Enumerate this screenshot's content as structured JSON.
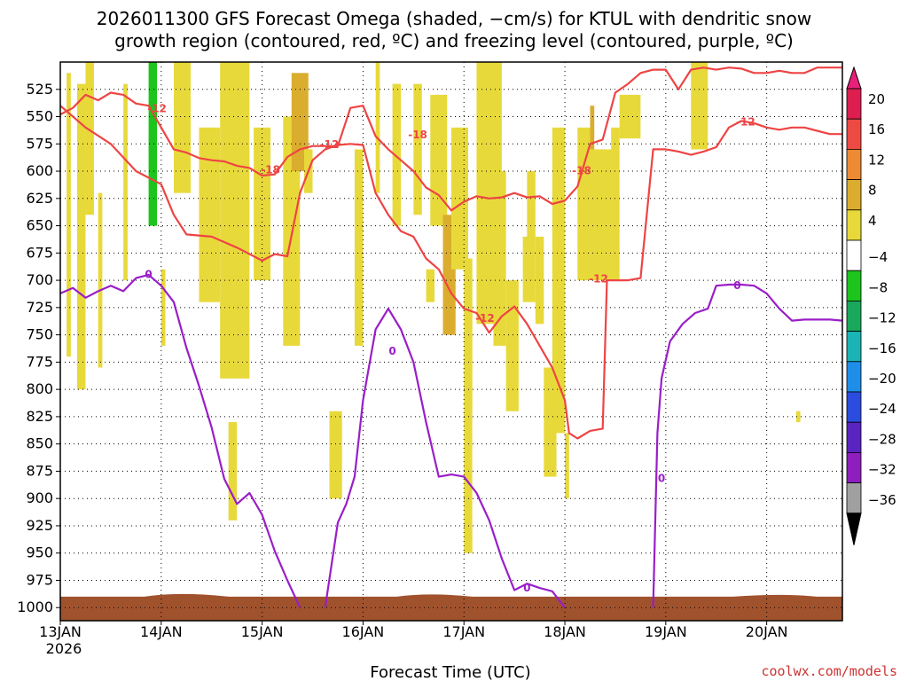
{
  "chart_data": {
    "type": "time-height cross-section",
    "title_line1": "2026011300 GFS Forecast Omega (shaded, −cm/s) for KTUL with dendritic snow",
    "title_line2": "growth region (contoured, red, ºC) and freezing level (contoured, purple, ºC)",
    "xlabel": "Forecast Time (UTC)",
    "credit": "coolwx.com/models",
    "x_start_year": "2026",
    "x_ticks": [
      {
        "label": "13JAN",
        "hour": 0
      },
      {
        "label": "14JAN",
        "hour": 24
      },
      {
        "label": "15JAN",
        "hour": 48
      },
      {
        "label": "16JAN",
        "hour": 72
      },
      {
        "label": "17JAN",
        "hour": 96
      },
      {
        "label": "18JAN",
        "hour": 120
      },
      {
        "label": "19JAN",
        "hour": 144
      },
      {
        "label": "20JAN",
        "hour": 168
      }
    ],
    "xlim_hours": [
      0,
      186
    ],
    "ylim_hpa": [
      500,
      1012
    ],
    "y_ticks": [
      "525",
      "550",
      "575",
      "600",
      "625",
      "650",
      "675",
      "700",
      "725",
      "750",
      "775",
      "800",
      "825",
      "850",
      "875",
      "900",
      "925",
      "950",
      "975",
      "1000"
    ],
    "colorbar": {
      "labels": [
        "20",
        "16",
        "12",
        "8",
        "4",
        "−4",
        "−8",
        "−12",
        "−16",
        "−20",
        "−24",
        "−28",
        "−32",
        "−36"
      ],
      "colors": [
        "#dd1e4f",
        "#ee4a44",
        "#ee8a33",
        "#dbad2e",
        "#e8d93b",
        "#ffffff",
        "#1cc41c",
        "#1aa85a",
        "#1ab4b4",
        "#1e8ee8",
        "#2c4ce0",
        "#5a24c0",
        "#8e1ebe",
        "#a0a0a0"
      ],
      "top_color": "#e8207a",
      "bottom_color": "#000000"
    },
    "contour_labels": {
      "dgz": "-12",
      "dgz_inner": "-18",
      "freezing": "0"
    },
    "dgz_upper_contour": [
      [
        0,
        548
      ],
      [
        3,
        542
      ],
      [
        6,
        530
      ],
      [
        9,
        535
      ],
      [
        12,
        528
      ],
      [
        15,
        530
      ],
      [
        18,
        538
      ],
      [
        21,
        540
      ],
      [
        24,
        560
      ],
      [
        27,
        580
      ],
      [
        30,
        583
      ],
      [
        33,
        588
      ],
      [
        36,
        590
      ],
      [
        39,
        591
      ],
      [
        42,
        595
      ],
      [
        45,
        597
      ],
      [
        48,
        604
      ],
      [
        51,
        603
      ],
      [
        54,
        587
      ],
      [
        57,
        580
      ],
      [
        60,
        577
      ],
      [
        63,
        577
      ],
      [
        66,
        577
      ],
      [
        69,
        542
      ],
      [
        72,
        540
      ],
      [
        75,
        568
      ],
      [
        78,
        580
      ],
      [
        81,
        590
      ],
      [
        84,
        600
      ],
      [
        87,
        615
      ],
      [
        90,
        622
      ],
      [
        93,
        636
      ],
      [
        96,
        628
      ],
      [
        99,
        623
      ],
      [
        102,
        625
      ],
      [
        105,
        624
      ],
      [
        108,
        620
      ],
      [
        111,
        624
      ],
      [
        114,
        623
      ],
      [
        117,
        630
      ],
      [
        120,
        627
      ],
      [
        123,
        614
      ],
      [
        126,
        575
      ],
      [
        129,
        571
      ],
      [
        132,
        528
      ],
      [
        135,
        520
      ],
      [
        138,
        510
      ],
      [
        141,
        507
      ],
      [
        144,
        507
      ],
      [
        147,
        525
      ],
      [
        150,
        507
      ],
      [
        153,
        505
      ],
      [
        156,
        507
      ],
      [
        159,
        505
      ],
      [
        162,
        506
      ],
      [
        165,
        510
      ],
      [
        168,
        510
      ],
      [
        171,
        508
      ],
      [
        174,
        510
      ],
      [
        177,
        510
      ],
      [
        180,
        505
      ],
      [
        183,
        505
      ],
      [
        186,
        505
      ]
    ],
    "dgz_lower_contour": [
      [
        0,
        540
      ],
      [
        6,
        560
      ],
      [
        12,
        575
      ],
      [
        18,
        600
      ],
      [
        24,
        612
      ],
      [
        27,
        640
      ],
      [
        30,
        658
      ],
      [
        36,
        660
      ],
      [
        42,
        670
      ],
      [
        48,
        682
      ],
      [
        51,
        676
      ],
      [
        54,
        678
      ],
      [
        57,
        620
      ],
      [
        60,
        590
      ],
      [
        63,
        580
      ],
      [
        66,
        576
      ],
      [
        69,
        575
      ],
      [
        72,
        576
      ],
      [
        75,
        620
      ],
      [
        78,
        640
      ],
      [
        81,
        655
      ],
      [
        84,
        660
      ],
      [
        87,
        680
      ],
      [
        90,
        690
      ],
      [
        93,
        712
      ],
      [
        96,
        726
      ],
      [
        99,
        730
      ],
      [
        102,
        748
      ],
      [
        105,
        733
      ],
      [
        108,
        724
      ],
      [
        111,
        740
      ],
      [
        114,
        760
      ],
      [
        117,
        780
      ],
      [
        120,
        810
      ],
      [
        121,
        840
      ],
      [
        123,
        845
      ],
      [
        126,
        838
      ],
      [
        129,
        836
      ],
      [
        130,
        700
      ],
      [
        132,
        700
      ],
      [
        135,
        700
      ],
      [
        138,
        698
      ],
      [
        141,
        580
      ],
      [
        144,
        580
      ],
      [
        147,
        582
      ],
      [
        150,
        585
      ],
      [
        153,
        582
      ],
      [
        156,
        578
      ],
      [
        159,
        560
      ],
      [
        162,
        554
      ],
      [
        165,
        556
      ],
      [
        168,
        560
      ],
      [
        171,
        562
      ],
      [
        174,
        560
      ],
      [
        177,
        560
      ],
      [
        180,
        563
      ],
      [
        183,
        566
      ],
      [
        186,
        566
      ]
    ],
    "freezing_contour": [
      [
        0,
        712
      ],
      [
        3,
        707
      ],
      [
        6,
        716
      ],
      [
        9,
        710
      ],
      [
        12,
        705
      ],
      [
        15,
        710
      ],
      [
        18,
        698
      ],
      [
        21,
        695
      ],
      [
        24,
        705
      ],
      [
        27,
        720
      ],
      [
        30,
        762
      ],
      [
        33,
        797
      ],
      [
        36,
        835
      ],
      [
        39,
        882
      ],
      [
        42,
        905
      ],
      [
        45,
        895
      ],
      [
        48,
        915
      ],
      [
        51,
        948
      ],
      [
        54,
        975
      ],
      [
        57,
        1000
      ]
    ],
    "freezing_contour_2": [
      [
        63,
        1000
      ],
      [
        66,
        922
      ],
      [
        68,
        905
      ],
      [
        70,
        880
      ],
      [
        72,
        810
      ],
      [
        75,
        745
      ],
      [
        78,
        726
      ],
      [
        81,
        745
      ],
      [
        84,
        775
      ],
      [
        87,
        830
      ],
      [
        90,
        880
      ],
      [
        93,
        878
      ],
      [
        96,
        880
      ],
      [
        99,
        895
      ],
      [
        102,
        920
      ],
      [
        105,
        955
      ],
      [
        108,
        984
      ],
      [
        111,
        978
      ],
      [
        114,
        982
      ],
      [
        117,
        985
      ],
      [
        120,
        1000
      ]
    ],
    "freezing_contour_3": [
      [
        141,
        1000
      ],
      [
        142,
        840
      ],
      [
        143,
        790
      ],
      [
        145,
        756
      ],
      [
        148,
        740
      ],
      [
        151,
        730
      ],
      [
        154,
        726
      ],
      [
        156,
        705
      ],
      [
        159,
        704
      ],
      [
        162,
        704
      ],
      [
        165,
        705
      ],
      [
        168,
        712
      ],
      [
        171,
        726
      ],
      [
        174,
        737
      ],
      [
        177,
        736
      ],
      [
        180,
        736
      ],
      [
        183,
        736
      ],
      [
        186,
        737
      ]
    ],
    "omega_bands": [
      {
        "h0": 1.5,
        "h1": 2.5,
        "p0": 510,
        "p1": 770,
        "level": "4"
      },
      {
        "h0": 4,
        "h1": 6,
        "p0": 520,
        "p1": 800,
        "level": "4"
      },
      {
        "h0": 6,
        "h1": 8,
        "p0": 500,
        "p1": 640,
        "level": "4"
      },
      {
        "h0": 9,
        "h1": 10,
        "p0": 620,
        "p1": 780,
        "level": "4"
      },
      {
        "h0": 12,
        "h1": 13,
        "p0": 500,
        "p1": 540,
        "level": "-4"
      },
      {
        "h0": 15,
        "h1": 16,
        "p0": 520,
        "p1": 700,
        "level": "4"
      },
      {
        "h0": 20,
        "h1": 23,
        "p0": 690,
        "p1": 900,
        "level": "-4"
      },
      {
        "h0": 21,
        "h1": 23,
        "p0": 500,
        "p1": 650,
        "level": "-8"
      },
      {
        "h0": 23,
        "h1": 26,
        "p0": 650,
        "p1": 940,
        "level": "-4"
      },
      {
        "h0": 24,
        "h1": 25,
        "p0": 690,
        "p1": 760,
        "level": "4"
      },
      {
        "h0": 27,
        "h1": 31,
        "p0": 500,
        "p1": 620,
        "level": "4"
      },
      {
        "h0": 33,
        "h1": 38,
        "p0": 560,
        "p1": 720,
        "level": "4"
      },
      {
        "h0": 38,
        "h1": 45,
        "p0": 500,
        "p1": 790,
        "level": "4"
      },
      {
        "h0": 40,
        "h1": 42,
        "p0": 830,
        "p1": 920,
        "level": "4"
      },
      {
        "h0": 46,
        "h1": 50,
        "p0": 560,
        "p1": 700,
        "level": "4"
      },
      {
        "h0": 53,
        "h1": 57,
        "p0": 550,
        "p1": 760,
        "level": "4"
      },
      {
        "h0": 55,
        "h1": 59,
        "p0": 510,
        "p1": 600,
        "level": "8"
      },
      {
        "h0": 58,
        "h1": 60,
        "p0": 580,
        "p1": 620,
        "level": "4"
      },
      {
        "h0": 64,
        "h1": 67,
        "p0": 820,
        "p1": 900,
        "level": "4"
      },
      {
        "h0": 70,
        "h1": 72,
        "p0": 580,
        "p1": 760,
        "level": "4"
      },
      {
        "h0": 73,
        "h1": 75,
        "p0": 580,
        "p1": 960,
        "level": "-4"
      },
      {
        "h0": 75,
        "h1": 76,
        "p0": 500,
        "p1": 620,
        "level": "4"
      },
      {
        "h0": 76,
        "h1": 78,
        "p0": 700,
        "p1": 955,
        "level": "-4"
      },
      {
        "h0": 79,
        "h1": 81,
        "p0": 520,
        "p1": 650,
        "level": "4"
      },
      {
        "h0": 81,
        "h1": 83,
        "p0": 760,
        "p1": 900,
        "level": "-4"
      },
      {
        "h0": 84,
        "h1": 86,
        "p0": 520,
        "p1": 640,
        "level": "4"
      },
      {
        "h0": 87,
        "h1": 89,
        "p0": 690,
        "p1": 720,
        "level": "4"
      },
      {
        "h0": 88,
        "h1": 92,
        "p0": 530,
        "p1": 650,
        "level": "4"
      },
      {
        "h0": 90,
        "h1": 93,
        "p0": 820,
        "p1": 950,
        "level": "-4"
      },
      {
        "h0": 91,
        "h1": 94,
        "p0": 640,
        "p1": 750,
        "level": "8"
      },
      {
        "h0": 93,
        "h1": 97,
        "p0": 560,
        "p1": 690,
        "level": "4"
      },
      {
        "h0": 96,
        "h1": 98,
        "p0": 680,
        "p1": 950,
        "level": "4"
      },
      {
        "h0": 98,
        "h1": 101,
        "p0": 820,
        "p1": 930,
        "level": "-4"
      },
      {
        "h0": 99,
        "h1": 105,
        "p0": 500,
        "p1": 740,
        "level": "4"
      },
      {
        "h0": 103,
        "h1": 106,
        "p0": 600,
        "p1": 760,
        "level": "4"
      },
      {
        "h0": 106,
        "h1": 109,
        "p0": 700,
        "p1": 820,
        "level": "4"
      },
      {
        "h0": 110,
        "h1": 113,
        "p0": 600,
        "p1": 720,
        "level": "4"
      },
      {
        "h0": 110,
        "h1": 111,
        "p0": 600,
        "p1": 660,
        "level": "-4"
      },
      {
        "h0": 113,
        "h1": 115,
        "p0": 660,
        "p1": 740,
        "level": "4"
      },
      {
        "h0": 115,
        "h1": 118,
        "p0": 780,
        "p1": 880,
        "level": "4"
      },
      {
        "h0": 117,
        "h1": 120,
        "p0": 560,
        "p1": 840,
        "level": "4"
      },
      {
        "h0": 120,
        "h1": 121,
        "p0": 840,
        "p1": 900,
        "level": "4"
      },
      {
        "h0": 123,
        "h1": 133,
        "p0": 560,
        "p1": 700,
        "level": "4"
      },
      {
        "h0": 126,
        "h1": 129,
        "p0": 540,
        "p1": 580,
        "level": "8"
      },
      {
        "h0": 127,
        "h1": 131,
        "p0": 520,
        "p1": 580,
        "level": "-4"
      },
      {
        "h0": 133,
        "h1": 138,
        "p0": 530,
        "p1": 570,
        "level": "4"
      },
      {
        "h0": 150,
        "h1": 154,
        "p0": 500,
        "p1": 580,
        "level": "4"
      },
      {
        "h0": 163,
        "h1": 166,
        "p0": 840,
        "p1": 900,
        "level": "-4"
      },
      {
        "h0": 175,
        "h1": 176,
        "p0": 820,
        "p1": 830,
        "level": "4"
      }
    ],
    "terrain_hpa": 990,
    "terrain_color": "#a0522d"
  }
}
